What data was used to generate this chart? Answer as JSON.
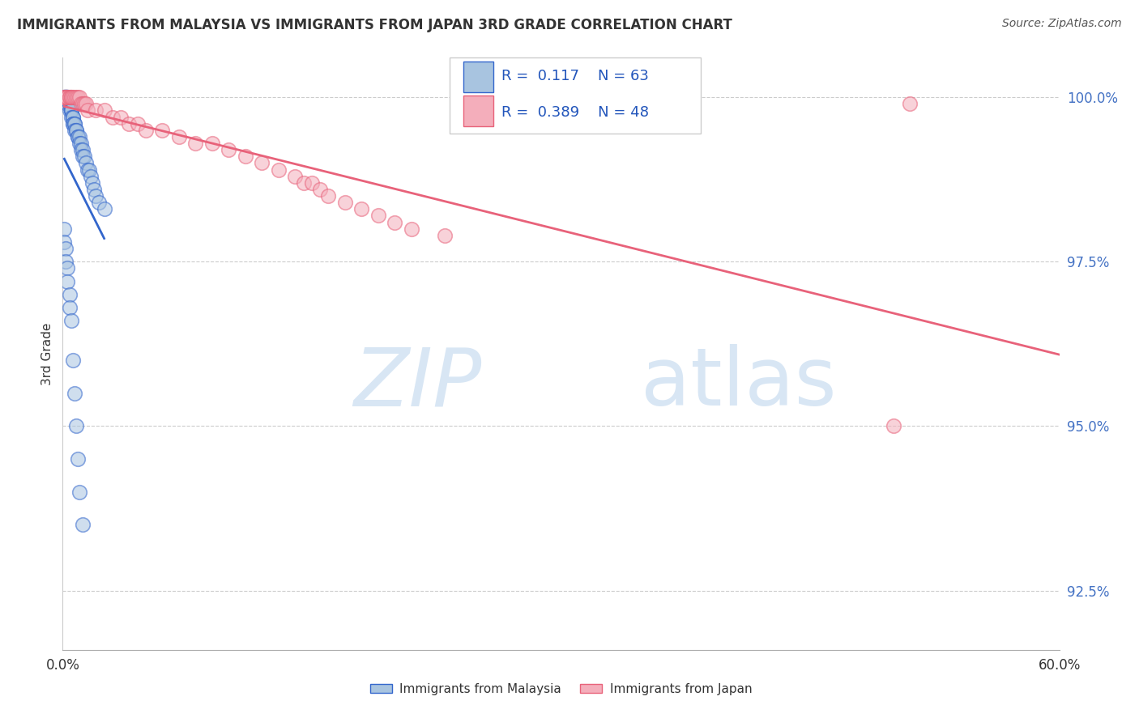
{
  "title": "IMMIGRANTS FROM MALAYSIA VS IMMIGRANTS FROM JAPAN 3RD GRADE CORRELATION CHART",
  "source": "Source: ZipAtlas.com",
  "ylabel": "3rd Grade",
  "ytick_labels": [
    "92.5%",
    "95.0%",
    "97.5%",
    "100.0%"
  ],
  "ytick_values": [
    0.925,
    0.95,
    0.975,
    1.0
  ],
  "x_min": 0.0,
  "x_max": 0.6,
  "y_min": 0.916,
  "y_max": 1.006,
  "legend_R_malaysia": "0.117",
  "legend_N_malaysia": "63",
  "legend_R_japan": "0.389",
  "legend_N_japan": "48",
  "color_malaysia": "#A8C4E0",
  "color_japan": "#F4AEBB",
  "trendline_malaysia": "#3366CC",
  "trendline_japan": "#E8627A",
  "malaysia_x": [
    0.001,
    0.001,
    0.001,
    0.002,
    0.002,
    0.002,
    0.002,
    0.002,
    0.003,
    0.003,
    0.003,
    0.003,
    0.003,
    0.004,
    0.004,
    0.004,
    0.004,
    0.005,
    0.005,
    0.005,
    0.005,
    0.006,
    0.006,
    0.006,
    0.006,
    0.007,
    0.007,
    0.007,
    0.008,
    0.008,
    0.009,
    0.009,
    0.01,
    0.01,
    0.011,
    0.011,
    0.012,
    0.012,
    0.013,
    0.014,
    0.015,
    0.016,
    0.017,
    0.018,
    0.019,
    0.02,
    0.022,
    0.025,
    0.001,
    0.001,
    0.002,
    0.002,
    0.003,
    0.003,
    0.004,
    0.004,
    0.005,
    0.006,
    0.007,
    0.008,
    0.009,
    0.01,
    0.012
  ],
  "malaysia_y": [
    1.0,
    1.0,
    1.0,
    1.0,
    1.0,
    1.0,
    1.0,
    1.0,
    1.0,
    1.0,
    1.0,
    0.999,
    0.999,
    0.999,
    0.999,
    0.999,
    0.998,
    0.998,
    0.998,
    0.998,
    0.997,
    0.997,
    0.997,
    0.996,
    0.996,
    0.996,
    0.996,
    0.995,
    0.995,
    0.995,
    0.994,
    0.994,
    0.994,
    0.993,
    0.993,
    0.992,
    0.992,
    0.991,
    0.991,
    0.99,
    0.989,
    0.989,
    0.988,
    0.987,
    0.986,
    0.985,
    0.984,
    0.983,
    0.98,
    0.978,
    0.977,
    0.975,
    0.974,
    0.972,
    0.97,
    0.968,
    0.966,
    0.96,
    0.955,
    0.95,
    0.945,
    0.94,
    0.935
  ],
  "japan_x": [
    0.001,
    0.001,
    0.002,
    0.002,
    0.003,
    0.003,
    0.004,
    0.004,
    0.005,
    0.005,
    0.006,
    0.007,
    0.008,
    0.009,
    0.01,
    0.011,
    0.012,
    0.013,
    0.014,
    0.015,
    0.02,
    0.025,
    0.03,
    0.035,
    0.04,
    0.045,
    0.05,
    0.06,
    0.07,
    0.08,
    0.09,
    0.1,
    0.11,
    0.12,
    0.13,
    0.14,
    0.145,
    0.15,
    0.155,
    0.16,
    0.17,
    0.18,
    0.19,
    0.2,
    0.21,
    0.23,
    0.5,
    0.51
  ],
  "japan_y": [
    1.0,
    1.0,
    1.0,
    1.0,
    1.0,
    1.0,
    1.0,
    1.0,
    1.0,
    1.0,
    1.0,
    1.0,
    1.0,
    1.0,
    1.0,
    0.999,
    0.999,
    0.999,
    0.999,
    0.998,
    0.998,
    0.998,
    0.997,
    0.997,
    0.996,
    0.996,
    0.995,
    0.995,
    0.994,
    0.993,
    0.993,
    0.992,
    0.991,
    0.99,
    0.989,
    0.988,
    0.987,
    0.987,
    0.986,
    0.985,
    0.984,
    0.983,
    0.982,
    0.981,
    0.98,
    0.979,
    0.95,
    0.999
  ]
}
